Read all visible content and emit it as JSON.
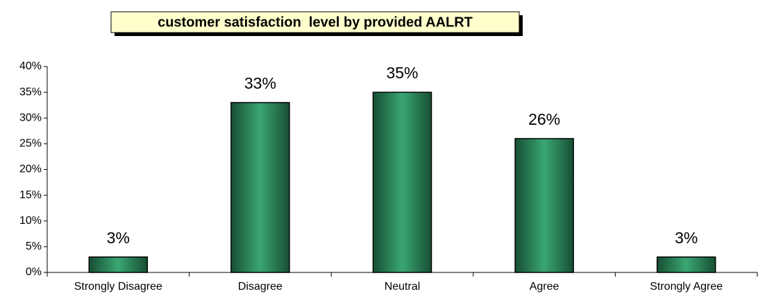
{
  "chart_data": {
    "type": "bar",
    "title": "customer satisfaction  level by provided AALRT",
    "categories": [
      "Strongly Disagree",
      "Disagree",
      "Neutral",
      "Agree",
      "Strongly Agree"
    ],
    "values": [
      3,
      33,
      35,
      26,
      3
    ],
    "value_labels": [
      "3%",
      "33%",
      "35%",
      "26%",
      "3%"
    ],
    "color": "#2e8b57",
    "ylim": [
      0,
      40
    ],
    "yticks": [
      {
        "value": 0,
        "label": "0%"
      },
      {
        "value": 5,
        "label": "5%"
      },
      {
        "value": 10,
        "label": "10%"
      },
      {
        "value": 15,
        "label": "15%"
      },
      {
        "value": 20,
        "label": "20%"
      },
      {
        "value": 25,
        "label": "25%"
      },
      {
        "value": 30,
        "label": "30%"
      },
      {
        "value": 35,
        "label": "35%"
      },
      {
        "value": 40,
        "label": "40%"
      }
    ]
  }
}
